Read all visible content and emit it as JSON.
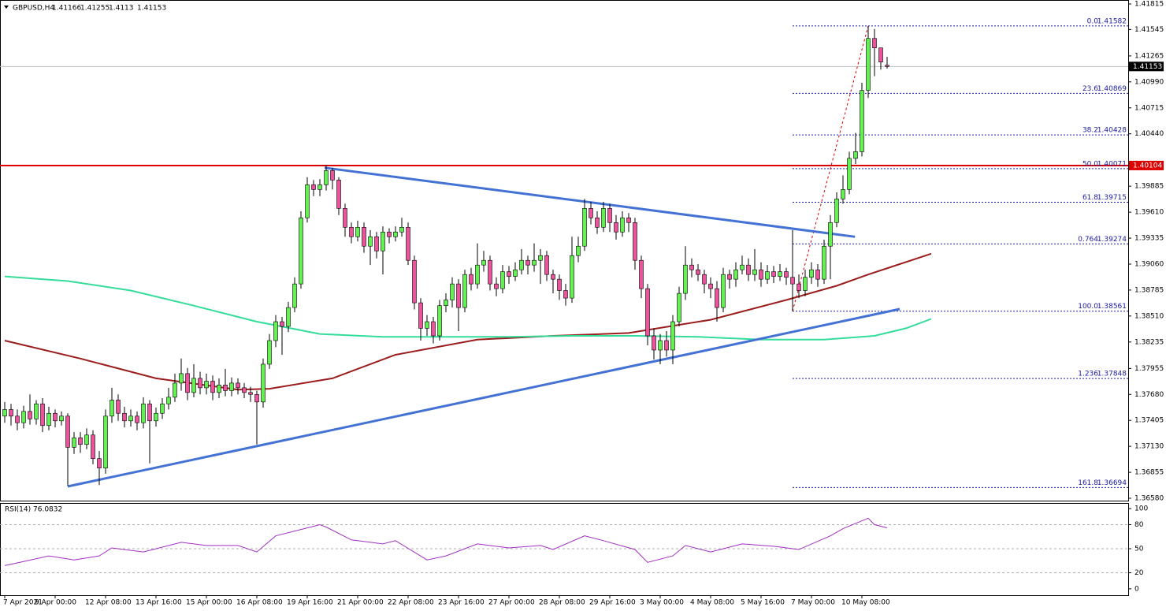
{
  "chart_data": {
    "type": "candlestick",
    "symbol": "GBPUSD,H4",
    "categories": [
      "7 Apr 2021",
      null,
      null,
      null,
      null,
      null,
      null,
      null,
      "9 Apr 00:00",
      null,
      null,
      null,
      null,
      null,
      null,
      null,
      "12 Apr 08:00",
      null,
      null,
      null,
      null,
      null,
      null,
      null,
      "13 Apr 16:00",
      null,
      null,
      null,
      null,
      null,
      null,
      null,
      "15 Apr 00:00",
      null,
      null,
      null,
      null,
      null,
      null,
      null,
      "16 Apr 08:00",
      null,
      null,
      null,
      null,
      null,
      null,
      null,
      "19 Apr 16:00",
      null,
      null,
      null,
      null,
      null,
      null,
      null,
      "21 Apr 00:00",
      null,
      null,
      null,
      null,
      null,
      null,
      null,
      "22 Apr 08:00",
      null,
      null,
      null,
      null,
      null,
      null,
      null,
      "23 Apr 16:00",
      null,
      null,
      null,
      null,
      null,
      null,
      null,
      "27 Apr 00:00",
      null,
      null,
      null,
      null,
      null,
      null,
      null,
      "28 Apr 08:00",
      null,
      null,
      null,
      null,
      null,
      null,
      null,
      "29 Apr 16:00",
      null,
      null,
      null,
      null,
      null,
      null,
      null,
      "3 May 00:00",
      null,
      null,
      null,
      null,
      null,
      null,
      null,
      "4 May 08:00",
      null,
      null,
      null,
      null,
      null,
      null,
      null,
      "5 May 16:00",
      null,
      null,
      null,
      null,
      null,
      null,
      null,
      "7 May 00:00",
      null,
      null,
      null,
      null,
      null,
      null,
      null,
      "10 May 08:00",
      null,
      null,
      null,
      null
    ],
    "open": [
      1.3745,
      1.3752,
      1.3745,
      1.3738,
      1.375,
      1.3742,
      1.3758,
      1.3735,
      1.3748,
      1.374,
      1.3745,
      1.3712,
      1.3722,
      1.3715,
      1.3725,
      1.37,
      1.369,
      1.3745,
      1.3762,
      1.3748,
      1.374,
      1.3745,
      1.3738,
      1.3758,
      1.374,
      1.3748,
      1.3758,
      1.3765,
      1.378,
      1.379,
      1.377,
      1.3785,
      1.3775,
      1.3782,
      1.377,
      1.3778,
      1.3772,
      1.378,
      1.3775,
      1.377,
      1.3768,
      1.376,
      1.38,
      1.3825,
      1.3845,
      1.384,
      1.386,
      1.3885,
      1.3955,
      1.399,
      1.3985,
      1.399,
      1.4005,
      1.3995,
      1.3965,
      1.3945,
      1.3935,
      1.3945,
      1.3925,
      1.3935,
      1.392,
      1.394,
      1.3935,
      1.394,
      1.3945,
      1.391,
      1.3865,
      1.3838,
      1.3845,
      1.383,
      1.3862,
      1.3868,
      1.3885,
      1.386,
      1.3895,
      1.3885,
      1.3905,
      1.391,
      1.3885,
      1.388,
      1.3898,
      1.3893,
      1.39,
      1.391,
      1.3905,
      1.391,
      1.3915,
      1.3895,
      1.389,
      1.3878,
      1.387,
      1.3915,
      1.3925,
      1.3965,
      1.3955,
      1.3945,
      1.3965,
      1.395,
      1.394,
      1.3955,
      1.395,
      1.391,
      1.388,
      1.383,
      1.3815,
      1.3825,
      1.3815,
      1.3845,
      1.3875,
      1.3905,
      1.39,
      1.3895,
      1.3885,
      1.388,
      1.386,
      1.3895,
      1.389,
      1.39,
      1.3905,
      1.3895,
      1.39,
      1.389,
      1.3898,
      1.3893,
      1.3898,
      1.3892,
      1.3885,
      1.3878,
      1.3892,
      1.39,
      1.389,
      1.3925,
      1.395,
      1.3975,
      1.3985,
      1.4018,
      1.4025,
      1.409,
      1.4145,
      1.4135,
      1.41166
    ],
    "high": [
      1.376,
      1.3758,
      1.3752,
      1.3756,
      1.3768,
      1.3762,
      1.3764,
      1.3755,
      1.3752,
      1.375,
      1.3748,
      1.3728,
      1.3728,
      1.3732,
      1.373,
      1.3708,
      1.3752,
      1.3775,
      1.3768,
      1.3755,
      1.3752,
      1.375,
      1.3765,
      1.3762,
      1.3754,
      1.3764,
      1.3775,
      1.379,
      1.3806,
      1.3796,
      1.38,
      1.3792,
      1.379,
      1.3788,
      1.3785,
      1.3795,
      1.3786,
      1.3785,
      1.378,
      1.3776,
      1.3772,
      1.3806,
      1.3832,
      1.3852,
      1.385,
      1.3866,
      1.3892,
      1.3962,
      1.3998,
      1.3995,
      1.3996,
      1.4011,
      1.4008,
      1.3998,
      1.397,
      1.395,
      1.3952,
      1.395,
      1.3942,
      1.394,
      1.3946,
      1.3944,
      1.3946,
      1.3955,
      1.395,
      1.3915,
      1.387,
      1.3852,
      1.385,
      1.3868,
      1.3875,
      1.3892,
      1.389,
      1.39,
      1.3902,
      1.3928,
      1.392,
      1.3915,
      1.3892,
      1.3905,
      1.3904,
      1.3908,
      1.3922,
      1.3915,
      1.3928,
      1.3922,
      1.392,
      1.39,
      1.3895,
      1.3885,
      1.3935,
      1.3935,
      1.3975,
      1.3972,
      1.3962,
      1.3972,
      1.397,
      1.3958,
      1.3962,
      1.396,
      1.3955,
      1.3915,
      1.3885,
      1.3838,
      1.3832,
      1.3835,
      1.3852,
      1.3882,
      1.3925,
      1.3912,
      1.3906,
      1.39,
      1.3892,
      1.3888,
      1.3902,
      1.39,
      1.3908,
      1.3915,
      1.3912,
      1.3922,
      1.3908,
      1.3905,
      1.3904,
      1.3906,
      1.3902,
      1.3942,
      1.3895,
      1.39,
      1.3908,
      1.3906,
      1.3932,
      1.3958,
      1.3982,
      1.4,
      1.4025,
      1.4045,
      1.4098,
      1.4158,
      1.4155,
      1.4135,
      1.41255
    ],
    "low": [
      1.3738,
      1.3735,
      1.373,
      1.3732,
      1.3736,
      1.3736,
      1.3728,
      1.373,
      1.3733,
      1.3735,
      1.3671,
      1.3705,
      1.3706,
      1.371,
      1.3694,
      1.3672,
      1.3684,
      1.3738,
      1.374,
      1.3733,
      1.3734,
      1.373,
      1.3732,
      1.3695,
      1.3734,
      1.3742,
      1.3752,
      1.376,
      1.3772,
      1.3762,
      1.3765,
      1.3768,
      1.3768,
      1.3762,
      1.3764,
      1.3766,
      1.3766,
      1.3768,
      1.3764,
      1.376,
      1.3715,
      1.3754,
      1.3795,
      1.3818,
      1.381,
      1.3834,
      1.3855,
      1.388,
      1.395,
      1.3978,
      1.3978,
      1.3984,
      1.3985,
      1.3958,
      1.3935,
      1.3928,
      1.393,
      1.3918,
      1.3905,
      1.3912,
      1.3895,
      1.3928,
      1.393,
      1.3935,
      1.3905,
      1.3858,
      1.3825,
      1.383,
      1.3822,
      1.3825,
      1.3855,
      1.386,
      1.3835,
      1.3855,
      1.3878,
      1.388,
      1.3898,
      1.3878,
      1.3872,
      1.3875,
      1.3885,
      1.3888,
      1.3895,
      1.3895,
      1.3898,
      1.3885,
      1.3888,
      1.3875,
      1.3868,
      1.3862,
      1.3865,
      1.3908,
      1.392,
      1.3948,
      1.3938,
      1.394,
      1.394,
      1.3932,
      1.3935,
      1.394,
      1.39,
      1.387,
      1.382,
      1.3805,
      1.38,
      1.3808,
      1.38,
      1.384,
      1.3868,
      1.3892,
      1.3888,
      1.3875,
      1.387,
      1.3845,
      1.3855,
      1.388,
      1.3882,
      1.3895,
      1.3888,
      1.3888,
      1.3882,
      1.3885,
      1.3886,
      1.3888,
      1.3884,
      1.3856,
      1.387,
      1.3872,
      1.3885,
      1.3882,
      1.3885,
      1.389,
      1.3945,
      1.397,
      1.398,
      1.4012,
      1.402,
      1.4082,
      1.4105,
      1.4112,
      1.4113
    ],
    "close": [
      1.3752,
      1.3745,
      1.3738,
      1.375,
      1.3742,
      1.3758,
      1.3735,
      1.3748,
      1.374,
      1.3745,
      1.3712,
      1.3722,
      1.3715,
      1.3725,
      1.37,
      1.369,
      1.3745,
      1.3762,
      1.3748,
      1.374,
      1.3745,
      1.3738,
      1.3758,
      1.374,
      1.3748,
      1.3758,
      1.3765,
      1.378,
      1.379,
      1.377,
      1.3785,
      1.3775,
      1.3782,
      1.377,
      1.3778,
      1.3772,
      1.378,
      1.3775,
      1.377,
      1.3768,
      1.376,
      1.38,
      1.3825,
      1.3845,
      1.384,
      1.386,
      1.3885,
      1.3955,
      1.399,
      1.3985,
      1.399,
      1.4005,
      1.3995,
      1.3965,
      1.3945,
      1.3935,
      1.3945,
      1.3925,
      1.3935,
      1.392,
      1.394,
      1.3935,
      1.394,
      1.3945,
      1.391,
      1.3865,
      1.3838,
      1.3845,
      1.383,
      1.3862,
      1.3868,
      1.3885,
      1.386,
      1.3895,
      1.3885,
      1.3905,
      1.391,
      1.3885,
      1.388,
      1.3898,
      1.3893,
      1.39,
      1.391,
      1.3905,
      1.391,
      1.3915,
      1.3895,
      1.389,
      1.3878,
      1.387,
      1.3915,
      1.3925,
      1.3965,
      1.3955,
      1.3945,
      1.3965,
      1.395,
      1.394,
      1.3955,
      1.395,
      1.391,
      1.388,
      1.383,
      1.3815,
      1.3825,
      1.3815,
      1.3845,
      1.3875,
      1.3905,
      1.39,
      1.3895,
      1.3885,
      1.388,
      1.386,
      1.3895,
      1.389,
      1.39,
      1.3905,
      1.3895,
      1.39,
      1.389,
      1.3898,
      1.3893,
      1.3898,
      1.3892,
      1.3885,
      1.3878,
      1.3892,
      1.39,
      1.389,
      1.3925,
      1.395,
      1.3975,
      1.3985,
      1.4018,
      1.4025,
      1.409,
      1.4145,
      1.4135,
      1.412,
      1.41153
    ],
    "up_color": "#66ee55",
    "down_color": "#e8559a",
    "ylim": [
      1.36555,
      1.41857
    ],
    "yticks": [
      1.41815,
      1.41545,
      1.41265,
      {
        "value": 1.4099,
        "label": "1.40990"
      },
      1.40715,
      {
        "value": 1.4044,
        "label": "1.40440"
      },
      1.39885,
      {
        "value": 1.3961,
        "label": "1.39610"
      },
      1.39335,
      {
        "value": 1.3906,
        "label": "1.39060"
      },
      1.38785,
      {
        "value": 1.3851,
        "label": "1.38510"
      },
      1.38235,
      1.37955,
      {
        "value": 1.3768,
        "label": "1.37680"
      },
      1.37405,
      {
        "value": 1.3713,
        "label": "1.37130"
      },
      1.36855,
      {
        "value": 1.3658,
        "label": "1.36580"
      }
    ],
    "moving_averages": [
      {
        "color": "#9b1c1c",
        "x": [
          0,
          12,
          24,
          37,
          42,
          52,
          62,
          75,
          87,
          99,
          112,
          124,
          132,
          137,
          142,
          147
        ],
        "values": [
          1.3825,
          1.3806,
          1.3785,
          1.3773,
          1.3774,
          1.3785,
          1.381,
          1.3826,
          1.383,
          1.3833,
          1.3847,
          1.3868,
          1.3883,
          1.3895,
          1.3906,
          1.3917
        ]
      },
      {
        "color": "#33dd99",
        "x": [
          0,
          10,
          20,
          30,
          40,
          50,
          60,
          70,
          80,
          90,
          100,
          110,
          120,
          130,
          138,
          143,
          147
        ],
        "values": [
          1.3893,
          1.3888,
          1.3878,
          1.3862,
          1.3845,
          1.3832,
          1.3829,
          1.3829,
          1.3829,
          1.383,
          1.383,
          1.3829,
          1.3826,
          1.3826,
          1.383,
          1.3838,
          1.3848
        ]
      }
    ],
    "trendlines": [
      {
        "color": "#4472d4",
        "x": [
          50.75,
          134.9
        ],
        "values": [
          1.4008,
          1.3935
        ]
      },
      {
        "color": "#4472d4",
        "x": [
          10,
          142
        ],
        "values": [
          1.36705,
          1.38584
        ]
      }
    ],
    "level": {
      "value": 1.40104,
      "color": "#dd0000"
    },
    "fibonacci": {
      "color": "#1a1aa0",
      "line_color": "#dd0000",
      "x": [
        125,
        137
      ],
      "values": [
        1.38561,
        1.41582
      ],
      "levels": [
        "0.0",
        "23.6",
        "38.2",
        "50.0",
        "61.8",
        "0.764",
        "100.0",
        "1.236",
        "161.8"
      ],
      "prices": [
        1.41582,
        1.40869,
        1.40428,
        1.40071,
        1.39715,
        1.39274,
        1.38561,
        1.37848,
        1.36694
      ]
    },
    "rsi": {
      "title": "RSI(14)",
      "value": 76.0832,
      "color": "#a030c0",
      "x": [
        0,
        3,
        7,
        11,
        15,
        17,
        22,
        28,
        32,
        37,
        40,
        43,
        47,
        50,
        51,
        55,
        60,
        62,
        67,
        70,
        75,
        80,
        85,
        87,
        92,
        95,
        100,
        102,
        106,
        108,
        112,
        117,
        122,
        126,
        131,
        133,
        137,
        138,
        140
      ],
      "values": [
        29,
        34,
        41,
        36,
        41,
        51,
        46,
        58,
        54,
        54,
        46,
        66,
        74,
        80,
        77,
        61,
        56,
        60,
        36,
        41,
        56,
        51,
        54,
        49,
        66,
        60,
        49,
        33,
        41,
        54,
        46,
        56,
        53,
        49,
        66,
        75,
        88,
        80,
        76.0832
      ],
      "ylim": [
        -8,
        107
      ],
      "yticks": [
        0,
        20,
        50,
        80,
        100
      ],
      "levels": [
        20,
        50,
        80
      ]
    }
  }
}
